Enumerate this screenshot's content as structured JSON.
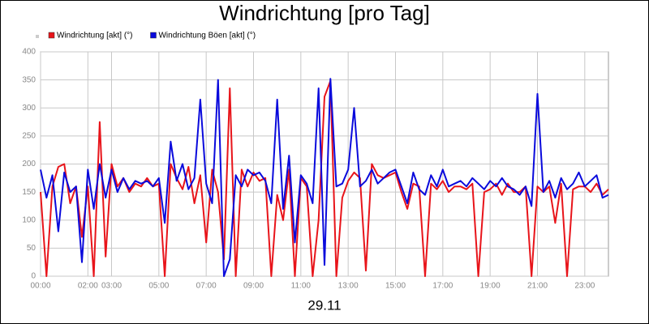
{
  "chart_data": {
    "type": "line",
    "title": "Windrichtung [pro Tag]",
    "x_label": "29.11",
    "xlim": [
      0,
      24
    ],
    "ylim": [
      0,
      400
    ],
    "grid": true,
    "xticks": [
      {
        "value": 0,
        "label": "00:00"
      },
      {
        "value": 2,
        "label": "02:00"
      },
      {
        "value": 3,
        "label": "03:00"
      },
      {
        "value": 5,
        "label": "05:00"
      },
      {
        "value": 7,
        "label": "07:00"
      },
      {
        "value": 9,
        "label": "09:00"
      },
      {
        "value": 11,
        "label": "11:00"
      },
      {
        "value": 13,
        "label": "13:00"
      },
      {
        "value": 15,
        "label": "15:00"
      },
      {
        "value": 17,
        "label": "17:00"
      },
      {
        "value": 19,
        "label": "19:00"
      },
      {
        "value": 21,
        "label": "21:00"
      },
      {
        "value": 23,
        "label": "23:00"
      }
    ],
    "yticks": [
      0,
      50,
      100,
      150,
      200,
      250,
      300,
      350,
      400
    ],
    "x": [
      0,
      0.25,
      0.5,
      0.75,
      1,
      1.25,
      1.5,
      1.75,
      2,
      2.25,
      2.5,
      2.75,
      3,
      3.25,
      3.5,
      3.75,
      4,
      4.25,
      4.5,
      4.75,
      5,
      5.25,
      5.5,
      5.75,
      6,
      6.25,
      6.5,
      6.75,
      7,
      7.25,
      7.5,
      7.75,
      8,
      8.25,
      8.5,
      8.75,
      9,
      9.25,
      9.5,
      9.75,
      10,
      10.25,
      10.5,
      10.75,
      11,
      11.25,
      11.5,
      11.75,
      12,
      12.25,
      12.5,
      12.75,
      13,
      13.25,
      13.5,
      13.75,
      14,
      14.25,
      14.5,
      14.75,
      15,
      15.25,
      15.5,
      15.75,
      16,
      16.25,
      16.5,
      16.75,
      17,
      17.25,
      17.5,
      17.75,
      18,
      18.25,
      18.5,
      18.75,
      19,
      19.25,
      19.5,
      19.75,
      20,
      20.25,
      20.5,
      20.75,
      21,
      21.25,
      21.5,
      21.75,
      22,
      22.25,
      22.5,
      22.75,
      23,
      23.25,
      23.5,
      23.75,
      24
    ],
    "series": [
      {
        "name": "Windrichtung [akt] (°)",
        "color": "#e8141a",
        "values": [
          150,
          0,
          160,
          195,
          200,
          130,
          160,
          70,
          160,
          0,
          275,
          35,
          200,
          160,
          175,
          150,
          165,
          160,
          175,
          160,
          165,
          0,
          200,
          175,
          155,
          195,
          130,
          180,
          60,
          190,
          150,
          30,
          335,
          0,
          190,
          160,
          185,
          170,
          175,
          0,
          145,
          100,
          190,
          0,
          175,
          160,
          0,
          100,
          320,
          348,
          0,
          140,
          170,
          185,
          175,
          10,
          200,
          180,
          175,
          180,
          185,
          150,
          120,
          165,
          160,
          0,
          165,
          155,
          170,
          150,
          160,
          160,
          155,
          165,
          0,
          150,
          155,
          165,
          145,
          165,
          150,
          150,
          160,
          0,
          160,
          150,
          160,
          95,
          165,
          0,
          155,
          160,
          160,
          150,
          165,
          145,
          155
        ]
      },
      {
        "name": "Windrichtung Böen [akt] (°)",
        "color": "#0a0adc",
        "values": [
          190,
          140,
          180,
          80,
          185,
          150,
          160,
          25,
          190,
          120,
          200,
          140,
          190,
          150,
          175,
          155,
          170,
          165,
          170,
          160,
          175,
          95,
          240,
          170,
          200,
          155,
          175,
          315,
          165,
          130,
          350,
          0,
          30,
          180,
          160,
          190,
          180,
          185,
          170,
          130,
          315,
          120,
          215,
          60,
          180,
          165,
          130,
          335,
          20,
          352,
          160,
          165,
          190,
          300,
          160,
          170,
          190,
          165,
          175,
          185,
          190,
          160,
          130,
          185,
          155,
          145,
          180,
          160,
          190,
          160,
          165,
          170,
          160,
          175,
          165,
          155,
          170,
          160,
          175,
          160,
          155,
          145,
          160,
          125,
          325,
          150,
          170,
          140,
          175,
          155,
          165,
          185,
          160,
          170,
          180,
          140,
          145
        ]
      }
    ]
  }
}
